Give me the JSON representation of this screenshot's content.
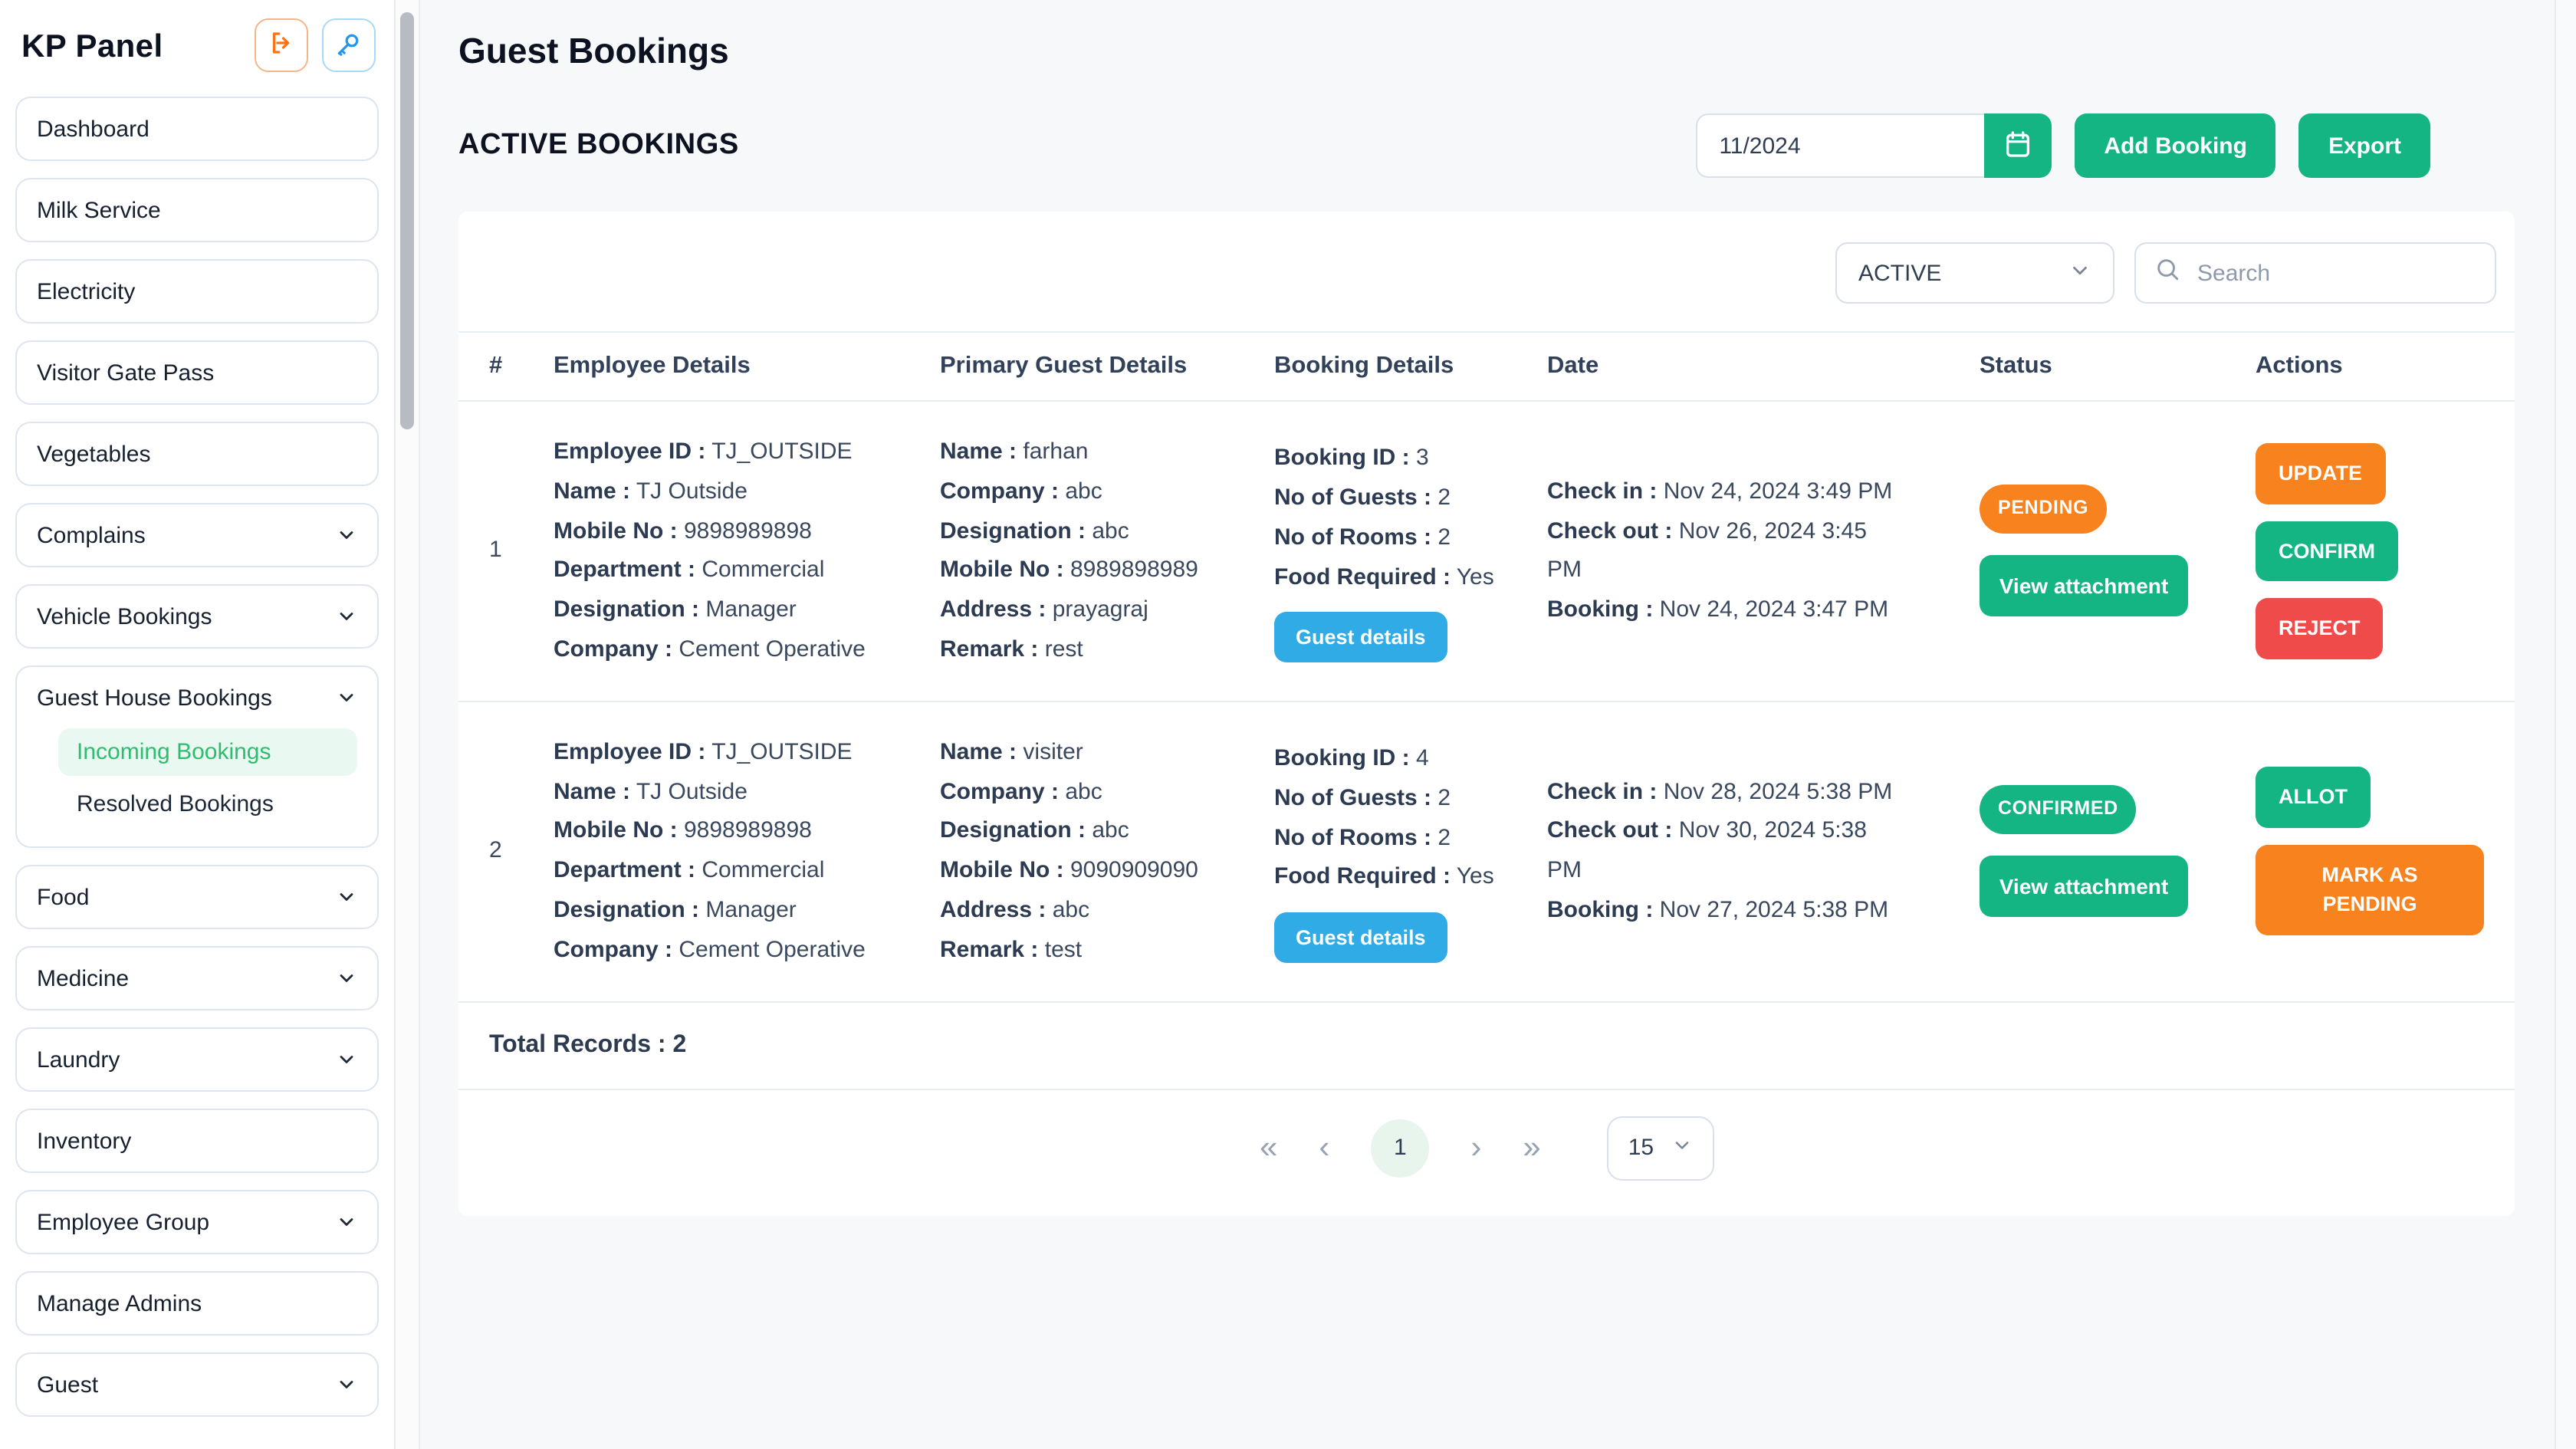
{
  "colors": {
    "green": "#14b483",
    "orange": "#f8821e",
    "red": "#ef4b4b",
    "blue": "#30abe5",
    "active_nav_green": "#2ebd6e",
    "key_icon_blue": "#2196f3",
    "logout_icon_orange": "#f97316"
  },
  "sidebar": {
    "title": "KP Panel",
    "items": [
      {
        "label": "Dashboard"
      },
      {
        "label": "Milk Service"
      },
      {
        "label": "Electricity"
      },
      {
        "label": "Visitor Gate Pass"
      },
      {
        "label": "Vegetables"
      },
      {
        "label": "Complains",
        "chevron": true
      },
      {
        "label": "Vehicle Bookings",
        "chevron": true
      },
      {
        "label": "Guest House Bookings",
        "chevron": true,
        "children": [
          {
            "label": "Incoming Bookings",
            "active": true
          },
          {
            "label": "Resolved Bookings"
          }
        ]
      },
      {
        "label": "Food",
        "chevron": true
      },
      {
        "label": "Medicine",
        "chevron": true
      },
      {
        "label": "Laundry",
        "chevron": true
      },
      {
        "label": "Inventory"
      },
      {
        "label": "Employee Group",
        "chevron": true
      },
      {
        "label": "Manage Admins"
      },
      {
        "label": "Guest",
        "chevron": true
      }
    ]
  },
  "header": {
    "page_title": "Guest Bookings",
    "section_title": "ACTIVE BOOKINGS",
    "month_value": "11/2024",
    "add_booking_label": "Add Booking",
    "export_label": "Export"
  },
  "filters": {
    "status_value": "ACTIVE",
    "search_placeholder": "Search"
  },
  "table": {
    "columns": [
      "#",
      "Employee Details",
      "Primary Guest Details",
      "Booking Details",
      "Date",
      "Status",
      "Actions"
    ],
    "rows": [
      {
        "index": "1",
        "employee": [
          {
            "label": "Employee ID",
            "value": "TJ_OUTSIDE"
          },
          {
            "label": "Name",
            "value": "TJ Outside"
          },
          {
            "label": "Mobile No",
            "value": "9898989898"
          },
          {
            "label": "Department",
            "value": "Commercial"
          },
          {
            "label": "Designation",
            "value": "Manager"
          },
          {
            "label": "Company",
            "value": "Cement Operative"
          }
        ],
        "guest": [
          {
            "label": "Name",
            "value": "farhan"
          },
          {
            "label": "Company",
            "value": "abc"
          },
          {
            "label": "Designation",
            "value": "abc"
          },
          {
            "label": "Mobile No",
            "value": "8989898989"
          },
          {
            "label": "Address",
            "value": "prayagraj"
          },
          {
            "label": "Remark",
            "value": "rest"
          }
        ],
        "booking": [
          {
            "label": "Booking ID",
            "value": "3"
          },
          {
            "label": "No of Guests",
            "value": "2"
          },
          {
            "label": "No of Rooms",
            "value": "2"
          },
          {
            "label": "Food Required",
            "value": "Yes"
          }
        ],
        "guest_details_label": "Guest details",
        "dates": [
          {
            "label": "Check in",
            "value": "Nov 24, 2024 3:49 PM"
          },
          {
            "label": "Check out",
            "value": "Nov 26, 2024 3:45 PM"
          },
          {
            "label": "Booking",
            "value": "Nov 24, 2024 3:47 PM"
          }
        ],
        "status": {
          "badge": "PENDING",
          "color": "orange",
          "attachment_label": "View attachment"
        },
        "actions": [
          {
            "label": "UPDATE",
            "color": "orange"
          },
          {
            "label": "CONFIRM",
            "color": "green"
          },
          {
            "label": "REJECT",
            "color": "red"
          }
        ]
      },
      {
        "index": "2",
        "employee": [
          {
            "label": "Employee ID",
            "value": "TJ_OUTSIDE"
          },
          {
            "label": "Name",
            "value": "TJ Outside"
          },
          {
            "label": "Mobile No",
            "value": "9898989898"
          },
          {
            "label": "Department",
            "value": "Commercial"
          },
          {
            "label": "Designation",
            "value": "Manager"
          },
          {
            "label": "Company",
            "value": "Cement Operative"
          }
        ],
        "guest": [
          {
            "label": "Name",
            "value": "visiter"
          },
          {
            "label": "Company",
            "value": "abc"
          },
          {
            "label": "Designation",
            "value": "abc"
          },
          {
            "label": "Mobile No",
            "value": "9090909090"
          },
          {
            "label": "Address",
            "value": "abc"
          },
          {
            "label": "Remark",
            "value": "test"
          }
        ],
        "booking": [
          {
            "label": "Booking ID",
            "value": "4"
          },
          {
            "label": "No of Guests",
            "value": "2"
          },
          {
            "label": "No of Rooms",
            "value": "2"
          },
          {
            "label": "Food Required",
            "value": "Yes"
          }
        ],
        "guest_details_label": "Guest details",
        "dates": [
          {
            "label": "Check in",
            "value": "Nov 28, 2024 5:38 PM"
          },
          {
            "label": "Check out",
            "value": "Nov 30, 2024 5:38 PM"
          },
          {
            "label": "Booking",
            "value": "Nov 27, 2024 5:38 PM"
          }
        ],
        "status": {
          "badge": "CONFIRMED",
          "color": "green",
          "attachment_label": "View attachment"
        },
        "actions": [
          {
            "label": "ALLOT",
            "color": "green"
          },
          {
            "label": "MARK AS PENDING",
            "color": "orange"
          }
        ]
      }
    ]
  },
  "footer": {
    "total_records": "Total Records : 2",
    "pagination": {
      "first": "«",
      "prev": "‹",
      "current_page": "1",
      "next": "›",
      "last": "»",
      "page_size": "15"
    }
  }
}
